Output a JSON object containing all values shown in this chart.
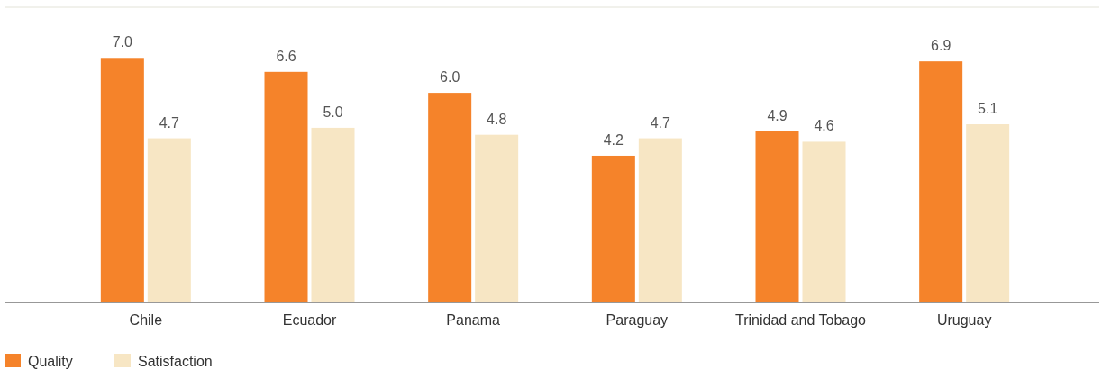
{
  "chart_data": {
    "type": "bar",
    "categories": [
      "Chile",
      "Ecuador",
      "Panama",
      "Paraguay",
      "Trinidad and Tobago",
      "Uruguay"
    ],
    "series": [
      {
        "name": "Quality",
        "color": "#f5832a",
        "values": [
          7.0,
          6.6,
          6.0,
          4.2,
          4.9,
          6.9
        ],
        "value_labels": [
          "7.0",
          "6.6",
          "6.0",
          "4.2",
          "4.9",
          "6.9"
        ]
      },
      {
        "name": "Satisfaction",
        "color": "#f7e6c4",
        "values": [
          4.7,
          5.0,
          4.8,
          4.7,
          4.6,
          5.1
        ],
        "value_labels": [
          "4.7",
          "5.0",
          "4.8",
          "4.7",
          "4.6",
          "5.1"
        ]
      }
    ],
    "ylim": [
      0,
      8.45
    ],
    "legend": "bottom left"
  }
}
